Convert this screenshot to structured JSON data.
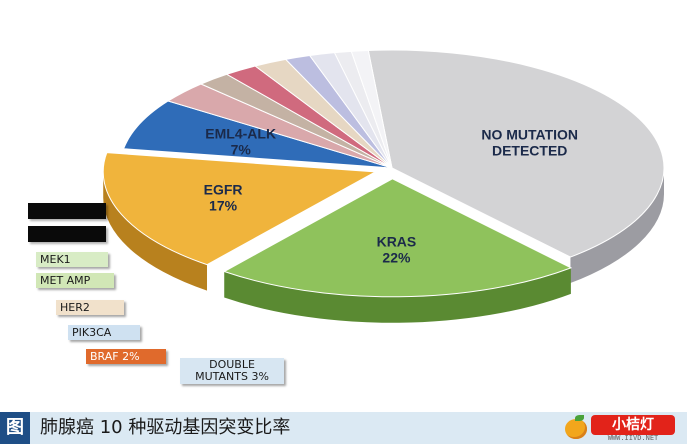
{
  "chart_data": {
    "type": "pie",
    "slices": [
      {
        "label": "NO MUTATION DETECTED",
        "value_text": "",
        "value": 40,
        "color": "#d3d3d5",
        "side": "#9c9ca2"
      },
      {
        "label": "KRAS",
        "value_text": "22%",
        "value": 22,
        "color": "#8fc25c",
        "side": "#5a8a32",
        "explode": true
      },
      {
        "label": "EGFR",
        "value_text": "17%",
        "value": 17,
        "color": "#f0b43c",
        "side": "#b8811e",
        "explode": true
      },
      {
        "label": "EML4-ALK",
        "value_text": "7%",
        "value": 7,
        "color": "#2f6cb8",
        "side": "#1c4578"
      },
      {
        "label": "DOUBLE MUTANTS",
        "value_text": "3%",
        "value": 3,
        "color": "#d9a8ab",
        "side": "#a7747a"
      },
      {
        "label": "BRAF",
        "value_text": "2%",
        "value": 2,
        "color": "#c4b2a4",
        "side": "#8e7c70"
      },
      {
        "label": "PIK3CA",
        "value_text": "",
        "value": 2,
        "color": "#d06a7e",
        "side": "#983f52"
      },
      {
        "label": "HER2",
        "value_text": "",
        "value": 2,
        "color": "#e6d7c3",
        "side": "#aa9a86"
      },
      {
        "label": "MET AMP",
        "value_text": "",
        "value": 1.5,
        "color": "#bcbee0",
        "side": "#8285ad"
      },
      {
        "label": "MEK1",
        "value_text": "",
        "value": 1.5,
        "color": "#e3e4ee",
        "side": "#a8a9b6"
      },
      {
        "label": "",
        "value_text": "",
        "value": 1,
        "color": "#ececf0",
        "side": "#b0b0b8"
      },
      {
        "label": "",
        "value_text": "",
        "value": 1,
        "color": "#f3f3f6",
        "side": "#b6b6bd"
      }
    ],
    "legend": [
      {
        "label": "MEK1",
        "color": "#d8ecc5"
      },
      {
        "label": "MET AMP",
        "color": "#d1e7b6"
      },
      {
        "label": "HER2",
        "color": "#f1e1cb"
      },
      {
        "label": "PIK3CA",
        "color": "#cfe1f1"
      },
      {
        "label": "BRAF 2%",
        "color": "#e06a2c"
      },
      {
        "label": "DOUBLE MUTANTS 3%",
        "color": "#d7e6f2"
      }
    ]
  },
  "caption": {
    "tag": "图",
    "text": "肺腺癌 10 种驱动基因突变比率"
  },
  "brand": {
    "name": "小桔灯",
    "url": "WWW.IIVD.NET"
  }
}
